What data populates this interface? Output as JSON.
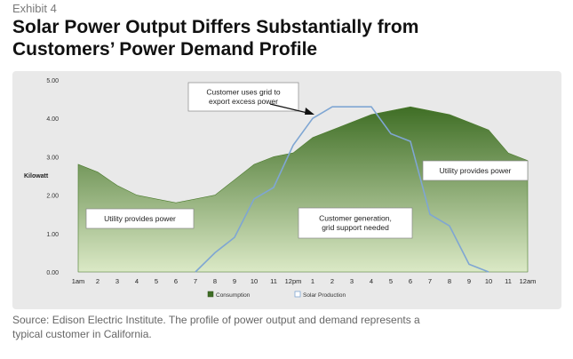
{
  "exhibit_label": "Exhibit 4",
  "headline_line1": "Solar Power Output Differs Substantially from",
  "headline_line2": "Customers’ Power Demand Profile",
  "source_line1": "Source: Edison Electric Institute. The profile of power output and demand represents a",
  "source_line2": "typical customer in California.",
  "colors": {
    "consumption_fill_top": "#3f6e25",
    "consumption_fill_bottom": "#dbe9c6",
    "solar_line": "#7fa6d3",
    "panel_bg": "#e9e9e9"
  },
  "chart_data": {
    "type": "area",
    "ylabel": "Kilowatt",
    "ylim": [
      0,
      5
    ],
    "yticks": [
      "0.00",
      "1.00",
      "2.00",
      "3.00",
      "4.00",
      "5.00"
    ],
    "categories": [
      "1am",
      "2",
      "3",
      "4",
      "5",
      "6",
      "7",
      "8",
      "9",
      "10",
      "11",
      "12pm",
      "1",
      "2",
      "3",
      "4",
      "5",
      "6",
      "7",
      "8",
      "9",
      "10",
      "11",
      "12am"
    ],
    "series": [
      {
        "name": "Consumption",
        "kind": "area",
        "values": [
          2.8,
          2.6,
          2.25,
          2.0,
          1.9,
          1.8,
          1.9,
          2.0,
          2.4,
          2.8,
          3.0,
          3.1,
          3.5,
          3.7,
          3.9,
          4.1,
          4.2,
          4.3,
          4.2,
          4.1,
          3.9,
          3.7,
          3.1,
          2.9
        ]
      },
      {
        "name": "Solar Production",
        "kind": "line",
        "values": [
          0,
          0,
          0,
          0,
          0,
          0,
          0,
          0.5,
          0.9,
          1.9,
          2.2,
          3.3,
          4.0,
          4.3,
          4.3,
          4.3,
          3.6,
          3.4,
          1.5,
          1.2,
          0.2,
          0,
          0,
          0
        ]
      }
    ],
    "legend_position": "bottom",
    "annotations": [
      {
        "lines": [
          "Customer uses grid to",
          "export excess power"
        ]
      },
      {
        "lines": [
          "Utility provides power"
        ]
      },
      {
        "lines": [
          "Utility provides power"
        ]
      },
      {
        "lines": [
          "Customer generation,",
          "grid support needed"
        ]
      }
    ]
  }
}
